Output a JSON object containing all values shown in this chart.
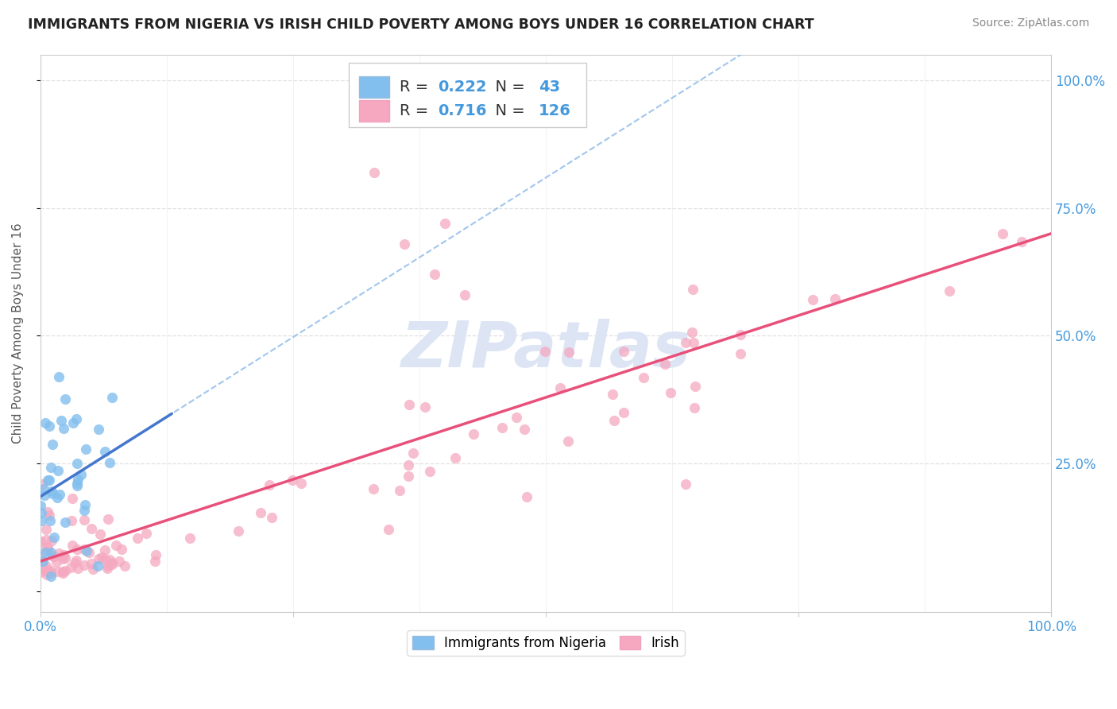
{
  "title": "IMMIGRANTS FROM NIGERIA VS IRISH CHILD POVERTY AMONG BOYS UNDER 16 CORRELATION CHART",
  "source": "Source: ZipAtlas.com",
  "ylabel": "Child Poverty Among Boys Under 16",
  "xlim": [
    0.0,
    1.0
  ],
  "ylim": [
    -0.04,
    1.05
  ],
  "blue_R": 0.222,
  "blue_N": 43,
  "pink_R": 0.716,
  "pink_N": 126,
  "blue_color": "#82bfee",
  "pink_color": "#f5a8c0",
  "blue_line_color": "#4477cc",
  "pink_line_color": "#e8507a",
  "blue_dash_color": "#8ab8e8",
  "watermark": "ZIPatlas",
  "watermark_color": "#dde5f5",
  "background_color": "#ffffff",
  "grid_color": "#e0e0e0",
  "legend_label_blue": "Immigrants from Nigeria",
  "legend_label_pink": "Irish",
  "tick_color": "#4499dd",
  "title_color": "#222222",
  "source_color": "#888888",
  "ylabel_color": "#555555"
}
